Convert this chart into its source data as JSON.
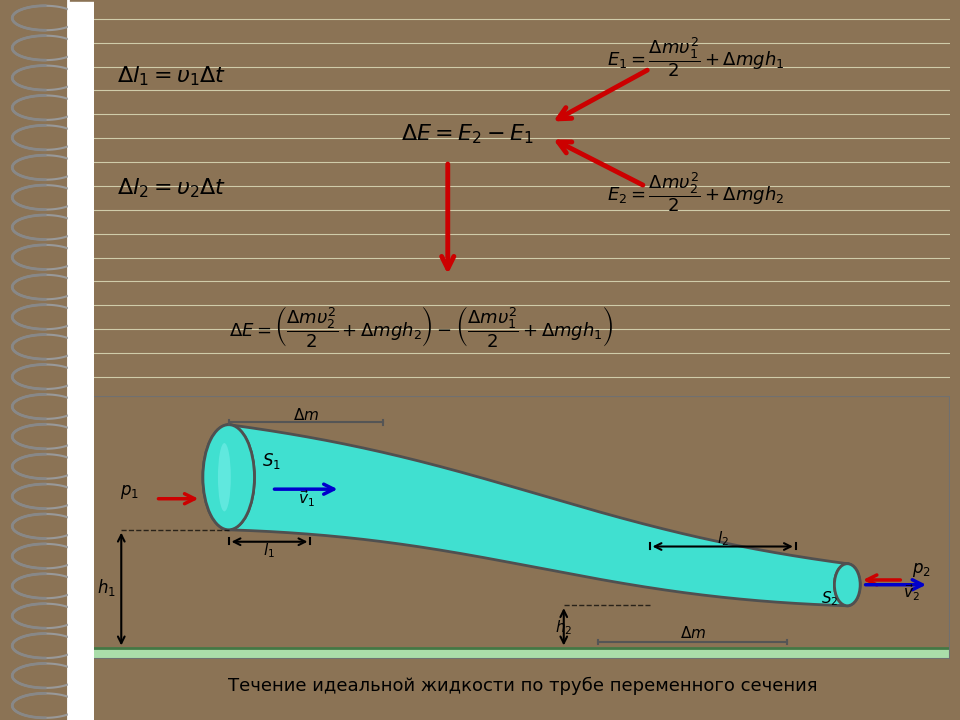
{
  "background_outer": "#8B7355",
  "background_notebook": "#FFFFFF",
  "background_diagram": "#F5F0C0",
  "background_ground": "#AADDAA",
  "tube_fill": "#40E0D0",
  "tube_edge": "#505050",
  "tube_dark": "#20B0A0",
  "arrow_red": "#CC0000",
  "arrow_blue": "#0000CC",
  "text_color": "#000000",
  "title_text": "Течение идеальной жидкости по трубе переменного сечения"
}
